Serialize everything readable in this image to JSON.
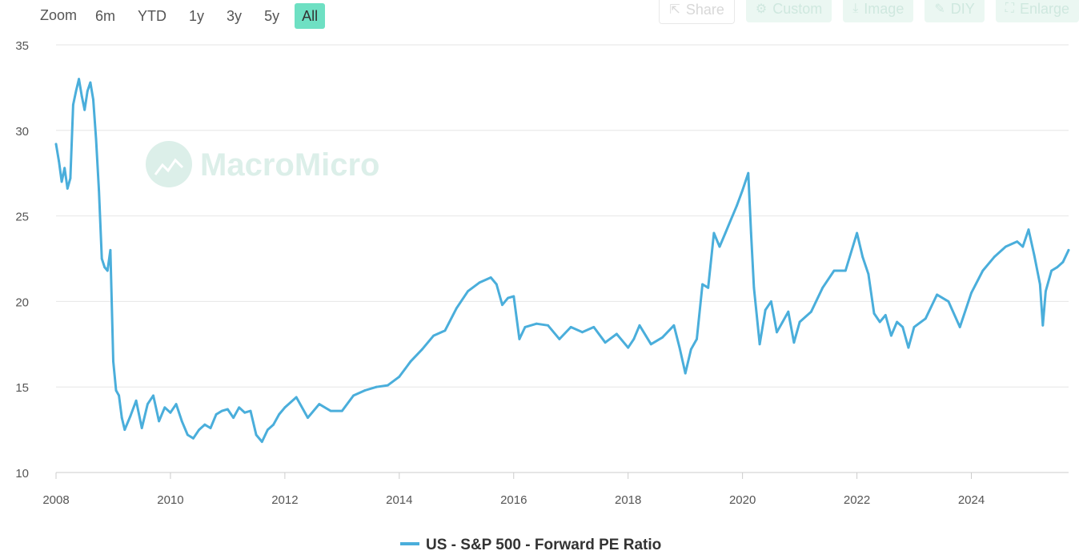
{
  "toolbar": {
    "zoom_label": "Zoom",
    "ranges": [
      "6m",
      "YTD",
      "1y",
      "3y",
      "5y",
      "All"
    ],
    "active_range": "All",
    "buttons": {
      "share": "Share",
      "custom": "Custom",
      "image": "Image",
      "diy": "DIY",
      "enlarge": "Enlarge"
    }
  },
  "watermark": "MacroMicro",
  "colors": {
    "line": "#4aaedb",
    "accent": "#6ee0c3",
    "grid": "#e6e6e6",
    "watermark": "#dcefe9"
  },
  "chart_data": {
    "type": "line",
    "title": "",
    "xlabel": "",
    "ylabel": "",
    "xlim": [
      2008,
      2025.7
    ],
    "ylim": [
      10,
      35
    ],
    "yticks": [
      10,
      15,
      20,
      25,
      30,
      35
    ],
    "xticks": [
      2008,
      2010,
      2012,
      2014,
      2016,
      2018,
      2020,
      2022,
      2024
    ],
    "grid": true,
    "legend_position": "bottom-center",
    "series": [
      {
        "name": "US - S&P 500 - Forward PE Ratio",
        "x": [
          2008.0,
          2008.05,
          2008.1,
          2008.15,
          2008.2,
          2008.25,
          2008.3,
          2008.35,
          2008.4,
          2008.45,
          2008.5,
          2008.55,
          2008.6,
          2008.65,
          2008.7,
          2008.75,
          2008.8,
          2008.85,
          2008.9,
          2008.95,
          2009.0,
          2009.05,
          2009.1,
          2009.15,
          2009.2,
          2009.3,
          2009.4,
          2009.5,
          2009.6,
          2009.7,
          2009.8,
          2009.9,
          2010.0,
          2010.1,
          2010.2,
          2010.3,
          2010.4,
          2010.5,
          2010.6,
          2010.7,
          2010.8,
          2010.9,
          2011.0,
          2011.1,
          2011.2,
          2011.3,
          2011.4,
          2011.5,
          2011.6,
          2011.7,
          2011.8,
          2011.9,
          2012.0,
          2012.2,
          2012.4,
          2012.6,
          2012.8,
          2013.0,
          2013.2,
          2013.4,
          2013.6,
          2013.8,
          2014.0,
          2014.2,
          2014.4,
          2014.6,
          2014.8,
          2015.0,
          2015.2,
          2015.4,
          2015.6,
          2015.7,
          2015.8,
          2015.9,
          2016.0,
          2016.1,
          2016.2,
          2016.4,
          2016.6,
          2016.8,
          2017.0,
          2017.2,
          2017.4,
          2017.6,
          2017.8,
          2018.0,
          2018.1,
          2018.2,
          2018.4,
          2018.6,
          2018.8,
          2018.9,
          2019.0,
          2019.1,
          2019.2,
          2019.3,
          2019.4,
          2019.5,
          2019.6,
          2019.7,
          2019.8,
          2019.9,
          2020.0,
          2020.1,
          2020.15,
          2020.2,
          2020.3,
          2020.4,
          2020.5,
          2020.6,
          2020.7,
          2020.8,
          2020.9,
          2021.0,
          2021.2,
          2021.4,
          2021.6,
          2021.8,
          2022.0,
          2022.1,
          2022.2,
          2022.3,
          2022.4,
          2022.5,
          2022.6,
          2022.7,
          2022.8,
          2022.9,
          2023.0,
          2023.2,
          2023.4,
          2023.6,
          2023.8,
          2024.0,
          2024.2,
          2024.4,
          2024.6,
          2024.8,
          2024.9,
          2025.0,
          2025.1,
          2025.2,
          2025.25,
          2025.3,
          2025.4,
          2025.5,
          2025.6,
          2025.7
        ],
        "values": [
          29.2,
          28.2,
          27.0,
          27.8,
          26.6,
          27.2,
          31.5,
          32.3,
          33.0,
          32.0,
          31.2,
          32.3,
          32.8,
          31.8,
          29.5,
          26.5,
          22.5,
          22.0,
          21.8,
          23.0,
          16.5,
          14.8,
          14.5,
          13.2,
          12.5,
          13.3,
          14.2,
          12.6,
          14.0,
          14.5,
          13.0,
          13.8,
          13.5,
          14.0,
          13.0,
          12.2,
          12.0,
          12.5,
          12.8,
          12.6,
          13.4,
          13.6,
          13.7,
          13.2,
          13.8,
          13.5,
          13.6,
          12.2,
          11.8,
          12.5,
          12.8,
          13.4,
          13.8,
          14.4,
          13.2,
          14.0,
          13.6,
          13.6,
          14.5,
          14.8,
          15.0,
          15.1,
          15.6,
          16.5,
          17.2,
          18.0,
          18.3,
          19.6,
          20.6,
          21.1,
          21.4,
          21.0,
          19.8,
          20.2,
          20.3,
          17.8,
          18.5,
          18.7,
          18.6,
          17.8,
          18.5,
          18.2,
          18.5,
          17.6,
          18.1,
          17.3,
          17.8,
          18.6,
          17.5,
          17.9,
          18.6,
          17.3,
          15.8,
          17.2,
          17.8,
          21.0,
          20.8,
          24.0,
          23.2,
          24.0,
          24.8,
          25.6,
          26.5,
          27.5,
          24.0,
          20.8,
          17.5,
          19.5,
          20.0,
          18.2,
          18.8,
          19.4,
          17.6,
          18.8,
          19.4,
          20.8,
          21.8,
          21.8,
          24.0,
          22.6,
          21.6,
          19.3,
          18.8,
          19.2,
          18.0,
          18.8,
          18.5,
          17.3,
          18.5,
          19.0,
          20.4,
          20.0,
          18.5,
          20.5,
          21.8,
          22.6,
          23.2,
          23.5,
          23.2,
          24.2,
          22.7,
          21.0,
          18.6,
          20.6,
          21.8,
          22.0,
          22.3,
          23.0
        ]
      }
    ]
  }
}
